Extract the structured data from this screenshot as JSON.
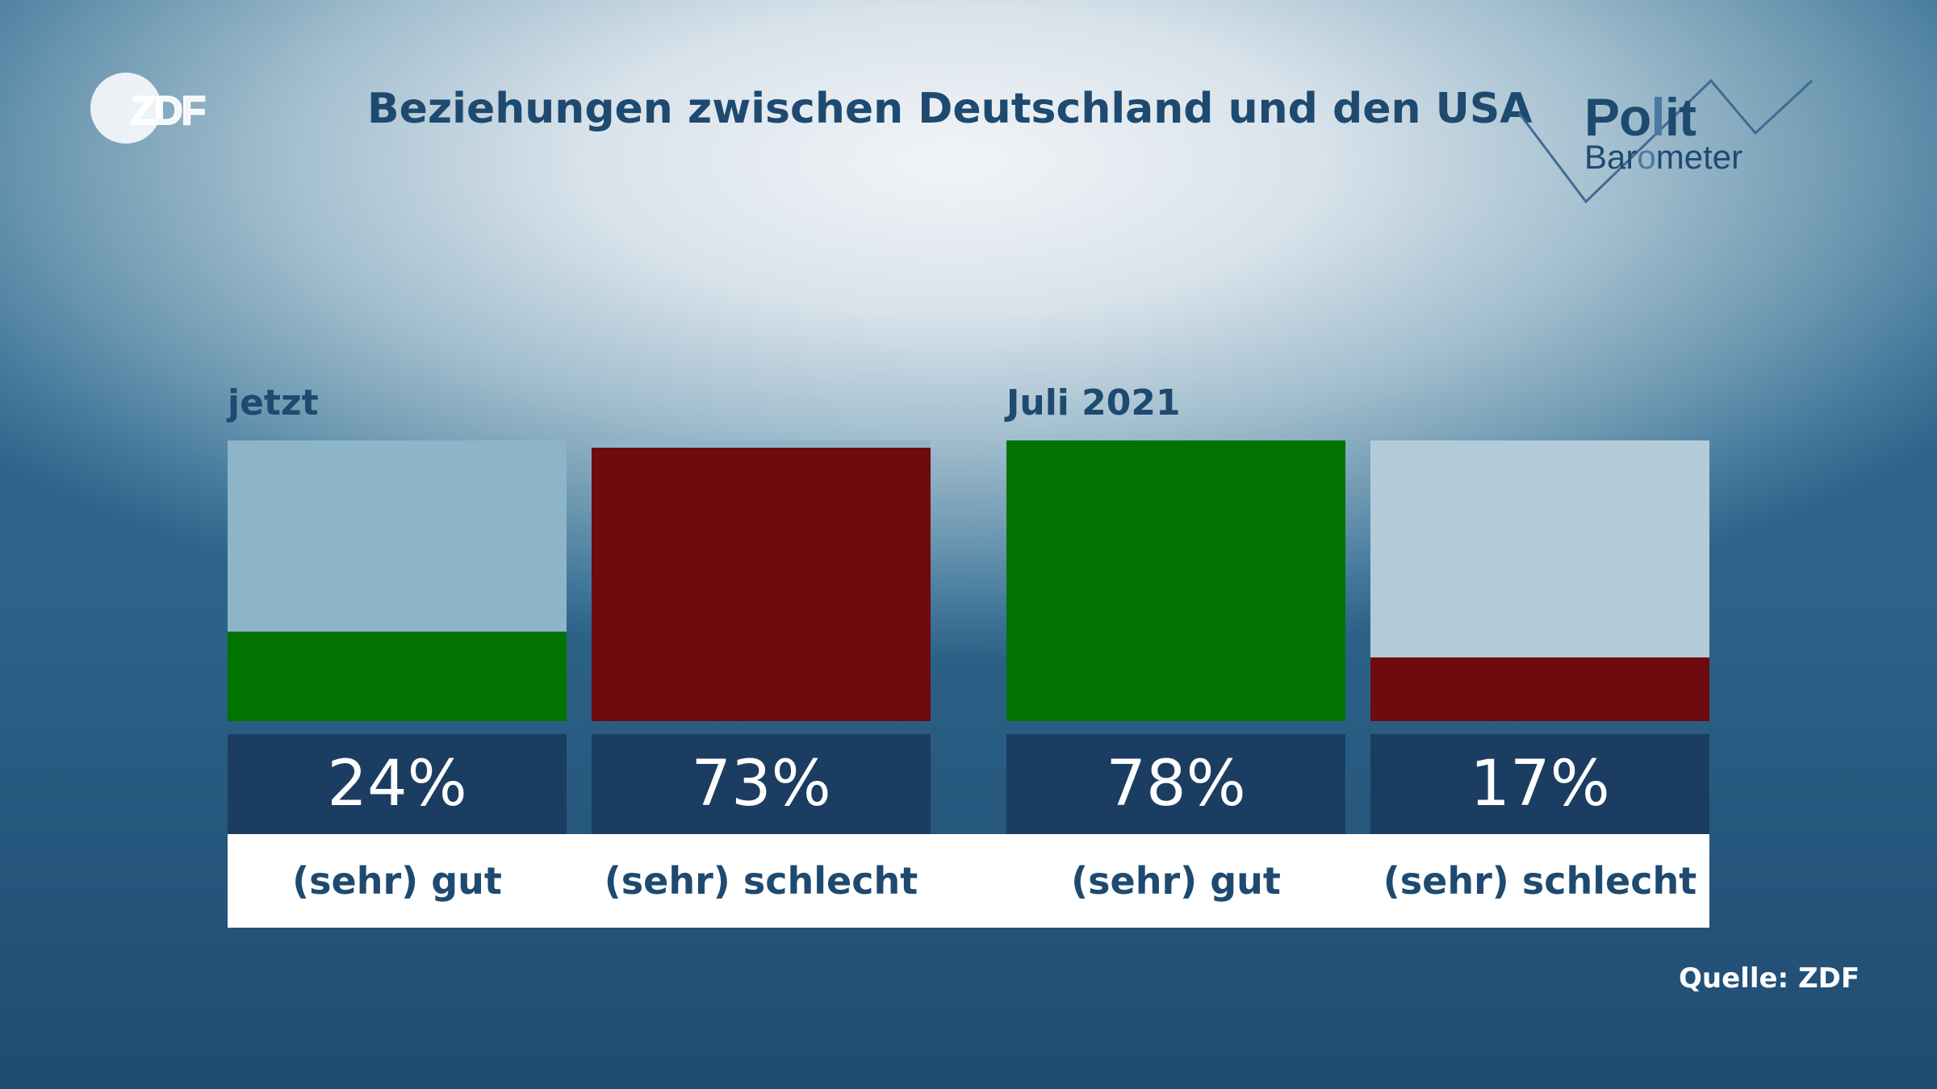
{
  "header": {
    "title": "Beziehungen zwischen Deutschland und den USA",
    "broadcaster_logo": "ZDF",
    "show_logo": {
      "word1_a": "Po",
      "word1_b": "l",
      "word1_c": "it",
      "word2_a": "Bar",
      "word2_b": "o",
      "word2_c": "meter"
    }
  },
  "source": "Quelle: ZDF",
  "colors": {
    "good": "#007300",
    "bad": "#6e0b0e",
    "bar_bg_left": "#8eb4c9",
    "bar_bg_right": "#b3cbd9",
    "value_box": "#1c3d62",
    "text": "#1e4a70"
  },
  "chart_data": {
    "type": "bar",
    "ylim": [
      0,
      75
    ],
    "groups": [
      {
        "label": "jetzt",
        "bars": [
          {
            "category": "(sehr) gut",
            "value": 24,
            "value_label": "24%",
            "color": "good"
          },
          {
            "category": "(sehr) schlecht",
            "value": 73,
            "value_label": "73%",
            "color": "bad"
          }
        ]
      },
      {
        "label": "Juli 2021",
        "bars": [
          {
            "category": "(sehr) gut",
            "value": 78,
            "value_label": "78%",
            "color": "good"
          },
          {
            "category": "(sehr) schlecht",
            "value": 17,
            "value_label": "17%",
            "color": "bad"
          }
        ]
      }
    ]
  }
}
